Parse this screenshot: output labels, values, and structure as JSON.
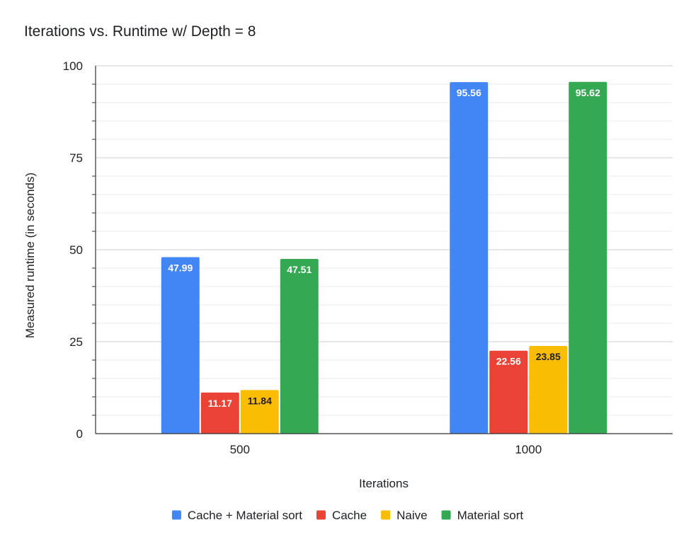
{
  "chart_data": {
    "type": "bar",
    "title": "Iterations vs. Runtime w/ Depth = 8",
    "xlabel": "Iterations",
    "ylabel": "Measured runtime (in seconds)",
    "categories": [
      "500",
      "1000"
    ],
    "ylim": [
      0,
      100
    ],
    "yticks": [
      0,
      25,
      50,
      75,
      100
    ],
    "grid": true,
    "legend_position": "bottom",
    "series": [
      {
        "name": "Cache + Material sort",
        "color": "#4285f4",
        "label_color": "#ffffff",
        "values": [
          47.99,
          95.56
        ],
        "labels": [
          "47.99",
          "95.56"
        ]
      },
      {
        "name": "Cache",
        "color": "#ea4335",
        "label_color": "#ffffff",
        "values": [
          11.17,
          22.56
        ],
        "labels": [
          "11.17",
          "22.56"
        ]
      },
      {
        "name": "Naive",
        "color": "#fbbc04",
        "label_color": "#202124",
        "values": [
          11.84,
          23.85
        ],
        "labels": [
          "11.84",
          "23.85"
        ]
      },
      {
        "name": "Material sort",
        "color": "#34a853",
        "label_color": "#ffffff",
        "values": [
          47.51,
          95.62
        ],
        "labels": [
          "47.51",
          "95.62"
        ]
      }
    ]
  }
}
